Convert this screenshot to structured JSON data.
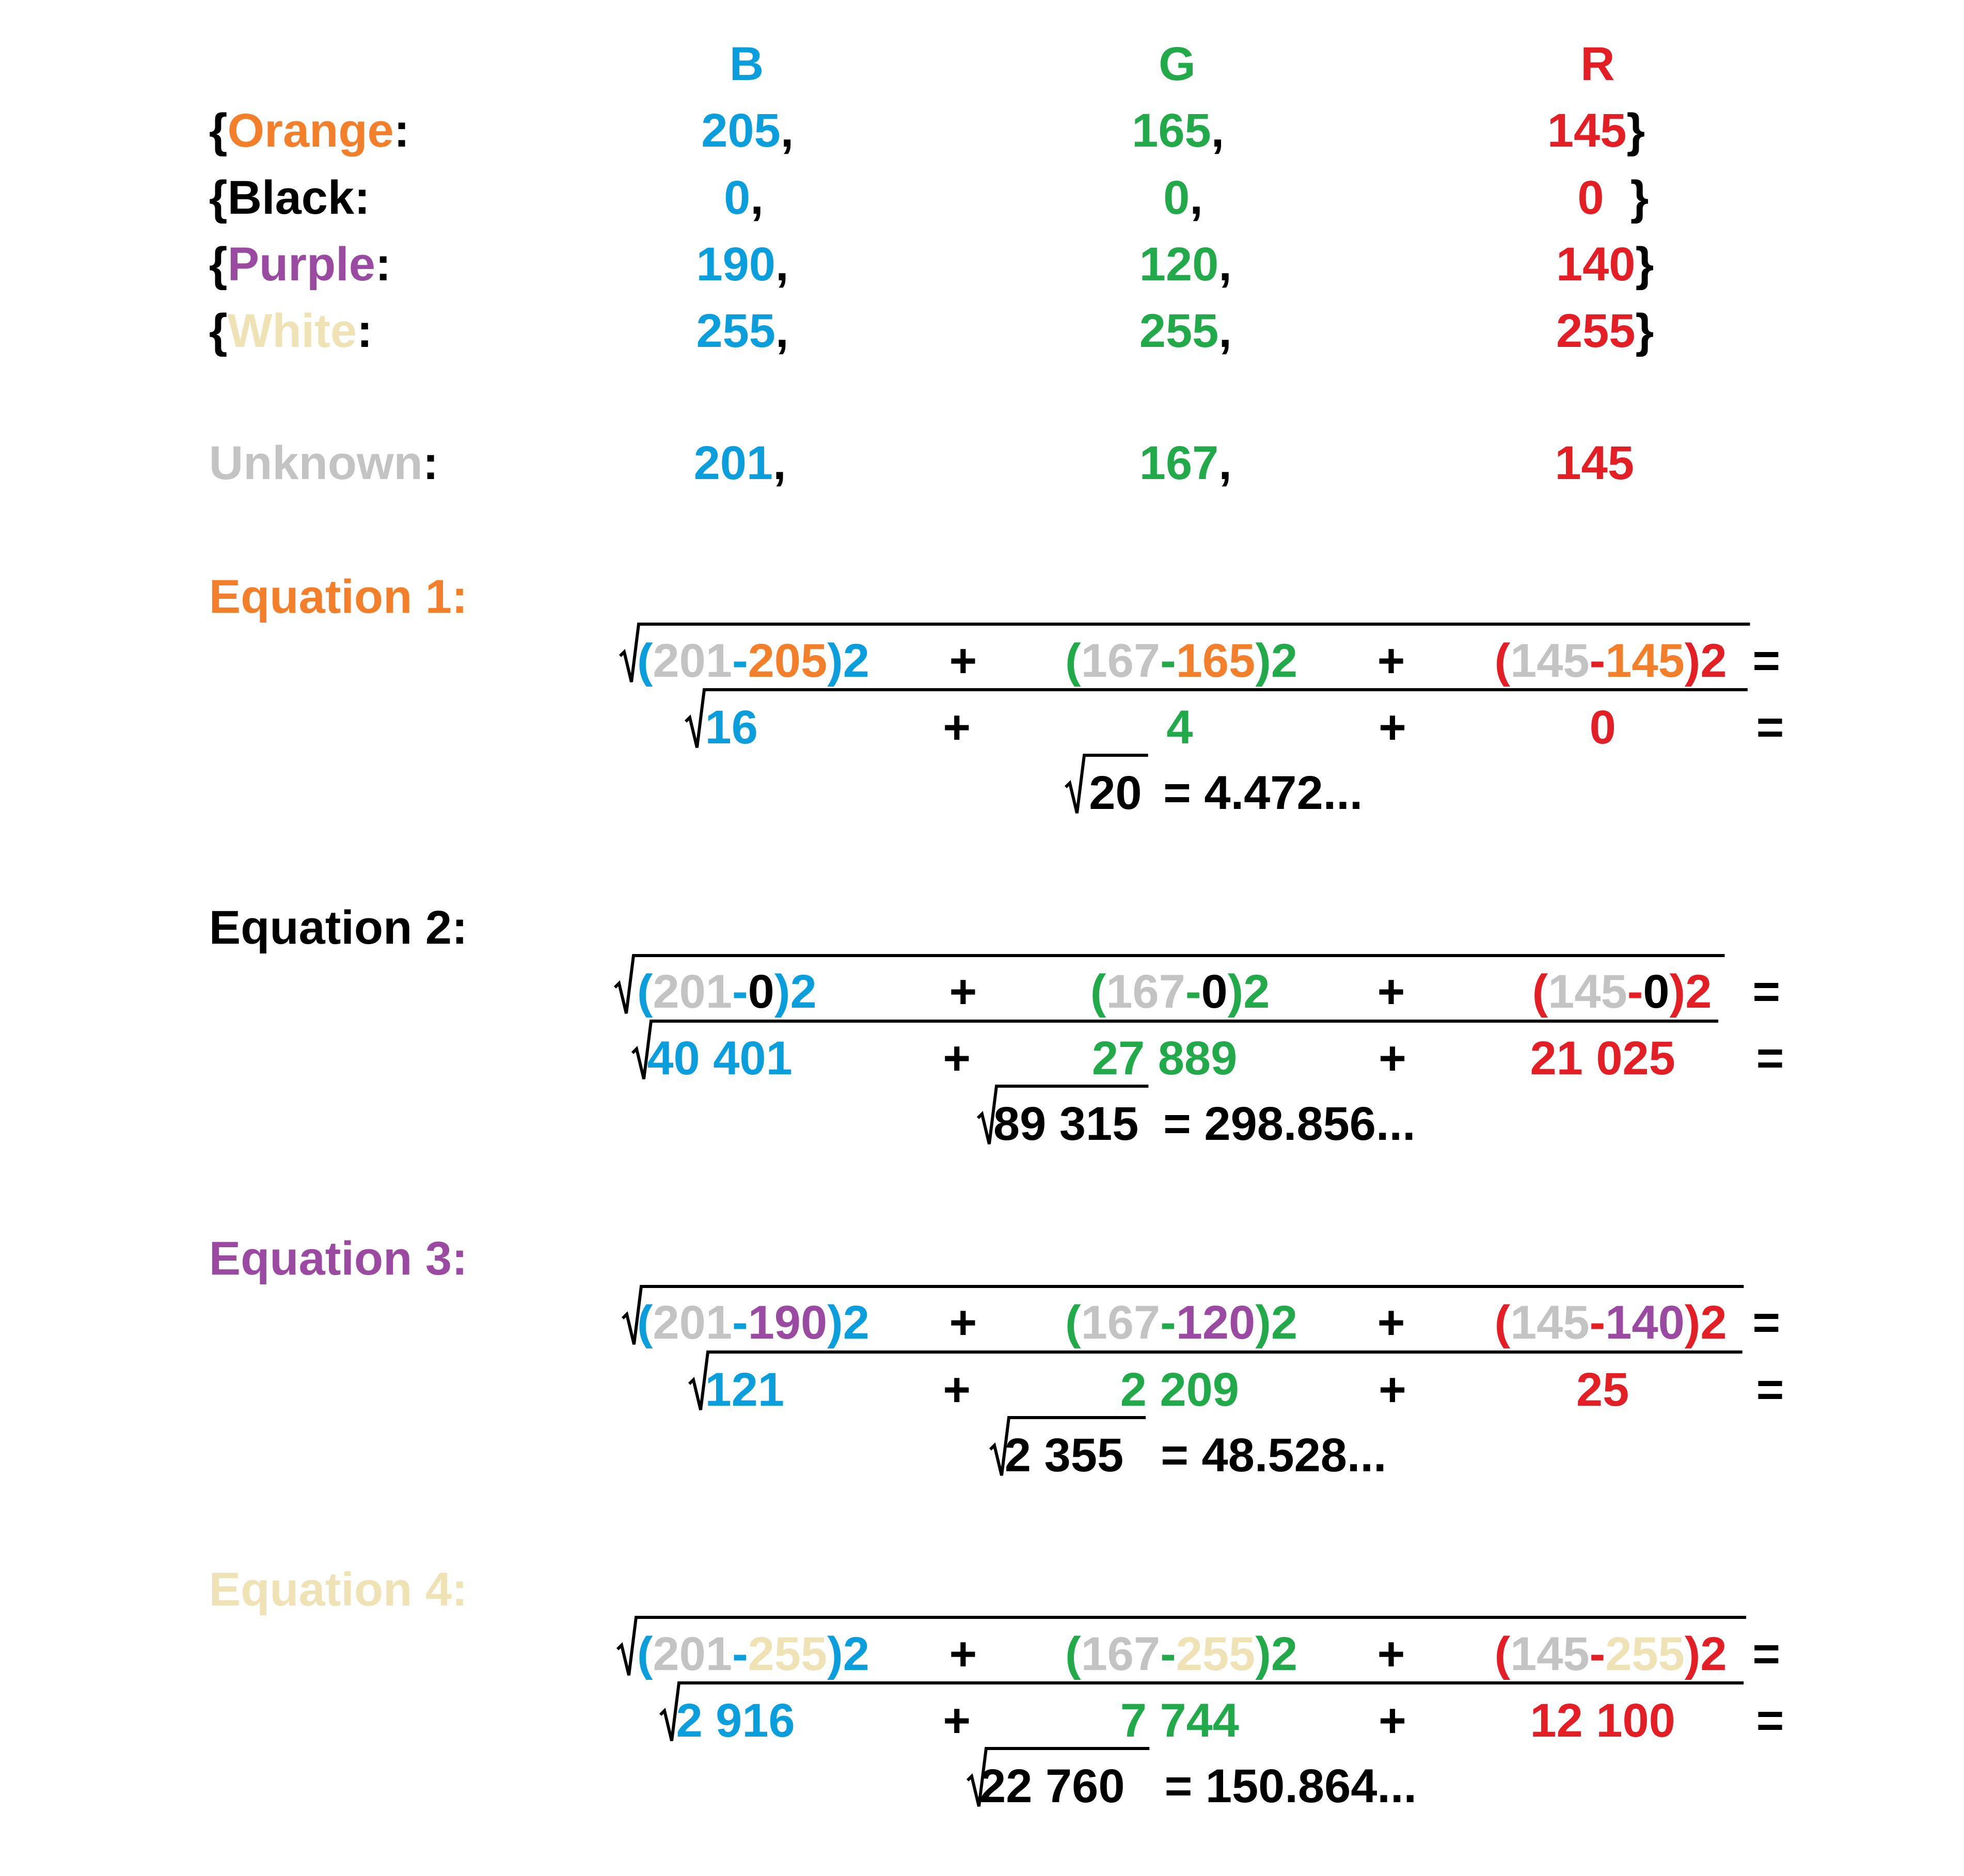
{
  "colors": {
    "blue": "#0a9fdc",
    "green": "#22aa4a",
    "red": "#e31e24",
    "orange": "#f47f2b",
    "purple": "#9b4aa2",
    "cream": "#efe2b4",
    "gray": "#c3c3c3",
    "black": "#000000"
  },
  "headers": {
    "b": "B",
    "g": "G",
    "r": "R"
  },
  "punct": {
    "open": "{",
    "close": "}",
    "colon": ":",
    "comma": ",",
    "close_spaced": "  }"
  },
  "rows": [
    {
      "name": "Orange",
      "b": "205",
      "g": "165",
      "r": "145"
    },
    {
      "name": "Black",
      "b": "0",
      "g": "0",
      "r": "0"
    },
    {
      "name": "Purple",
      "b": "190",
      "g": "120",
      "r": "140"
    },
    {
      "name": "White",
      "b": "255",
      "g": "255",
      "r": "255"
    }
  ],
  "unknown": {
    "name": "Unknown",
    "b": "201",
    "g": "167",
    "r": "145"
  },
  "sym": {
    "lp": "(",
    "rp": ")",
    "minus": "-",
    "sq": "2",
    "plus": "+",
    "eq": "="
  },
  "equations": [
    {
      "label": "Equation 1:",
      "sub": [
        "205",
        "165",
        "145"
      ],
      "sq": [
        "16",
        "4",
        "0"
      ],
      "sum": "20",
      "result": "= 4.472..."
    },
    {
      "label": "Equation 2:",
      "sub": [
        "0",
        "0",
        "0"
      ],
      "sq": [
        "40 401",
        "27 889",
        "21 025"
      ],
      "sum": "89 315",
      "result": "= 298.856..."
    },
    {
      "label": "Equation 3:",
      "sub": [
        "190",
        "120",
        "140"
      ],
      "sq": [
        "121",
        "2 209",
        "25"
      ],
      "sum": "2 355",
      "result": "= 48.528..."
    },
    {
      "label": "Equation 4:",
      "sub": [
        "255",
        "255",
        "255"
      ],
      "sq": [
        "2 916",
        "7 744",
        "12 100"
      ],
      "sum": "22 760",
      "result": "= 150.864..."
    }
  ]
}
